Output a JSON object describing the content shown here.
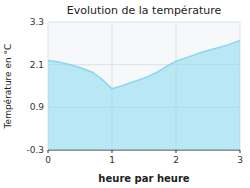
{
  "chart_data": {
    "type": "area",
    "title": "Evolution de la température",
    "x_label": "heure par heure",
    "y_label": "Température en °C",
    "x": [
      0,
      0.15,
      0.3,
      0.5,
      0.7,
      0.85,
      1.0,
      1.15,
      1.3,
      1.5,
      1.7,
      1.85,
      2.0,
      2.2,
      2.4,
      2.6,
      2.8,
      3.0
    ],
    "values": [
      2.22,
      2.18,
      2.12,
      2.02,
      1.88,
      1.68,
      1.42,
      1.5,
      1.6,
      1.72,
      1.88,
      2.05,
      2.2,
      2.32,
      2.45,
      2.55,
      2.65,
      2.78
    ],
    "color": "#88d8ee",
    "xlim": [
      0,
      3
    ],
    "ylim": [
      -0.3,
      3.3
    ],
    "xticks": [
      0,
      1,
      2,
      3
    ],
    "yticks": [
      -0.3,
      0.9,
      2.1,
      3.3
    ],
    "grid": true
  }
}
